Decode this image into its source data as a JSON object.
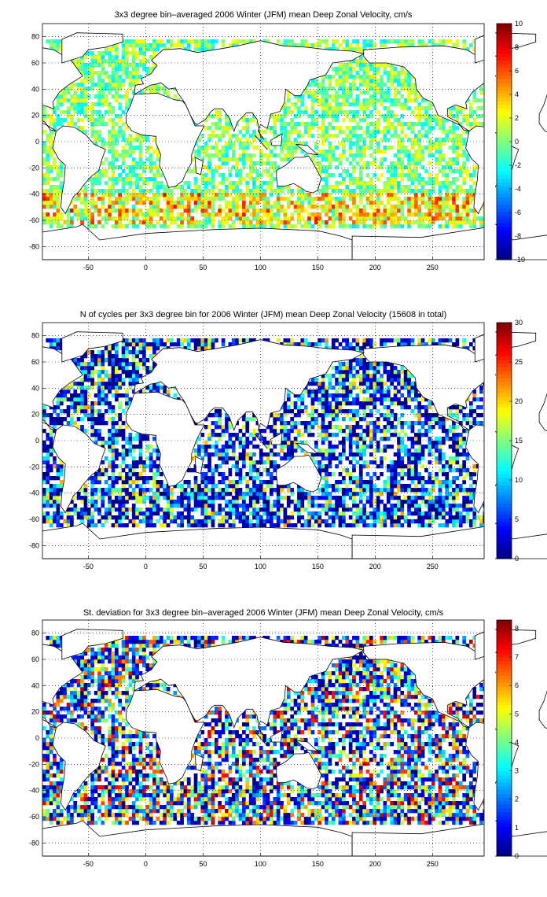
{
  "chart_data": [
    {
      "type": "heatmap",
      "title": "3x3 degree bin–averaged 2006 Winter (JFM) mean Deep Zonal Velocity, cm/s",
      "xlabel": "",
      "ylabel": "",
      "xlim": [
        -90,
        295
      ],
      "ylim": [
        -90,
        90
      ],
      "xticks": [
        -50,
        0,
        50,
        100,
        150,
        200,
        250
      ],
      "yticks": [
        -80,
        -60,
        -40,
        -20,
        0,
        20,
        40,
        60,
        80
      ],
      "grid": true,
      "colorbar": {
        "min": -10,
        "max": 10,
        "ticks": [
          -10,
          -8,
          -6,
          -4,
          -2,
          0,
          2,
          4,
          6,
          8,
          10
        ],
        "colormap": "jet"
      },
      "cell_size_deg": 3,
      "mode": "signed"
    },
    {
      "type": "heatmap",
      "title": "N of cycles per 3x3 degree bin for 2006 Winter (JFM) mean Deep Zonal Velocity (15608 in total)",
      "xlabel": "",
      "ylabel": "",
      "xlim": [
        -90,
        295
      ],
      "ylim": [
        -90,
        90
      ],
      "xticks": [
        -50,
        0,
        50,
        100,
        150,
        200,
        250
      ],
      "yticks": [
        -80,
        -60,
        -40,
        -20,
        0,
        20,
        40,
        60,
        80
      ],
      "grid": true,
      "colorbar": {
        "min": 0,
        "max": 30,
        "ticks": [
          0,
          5,
          10,
          15,
          20,
          25,
          30
        ],
        "colormap": "jet"
      },
      "cell_size_deg": 3,
      "mode": "count"
    },
    {
      "type": "heatmap",
      "title": "St. deviation for 3x3 degree bin–averaged 2006 Winter (JFM) mean Deep Zonal Velocity, cm/s",
      "xlabel": "",
      "ylabel": "",
      "xlim": [
        -90,
        295
      ],
      "ylim": [
        -90,
        90
      ],
      "xticks": [
        -50,
        0,
        50,
        100,
        150,
        200,
        250
      ],
      "yticks": [
        -80,
        -60,
        -40,
        -20,
        0,
        20,
        40,
        60,
        80
      ],
      "grid": true,
      "colorbar": {
        "min": 0,
        "max": 8.3,
        "ticks": [
          0,
          1,
          2,
          3,
          4,
          5,
          6,
          7,
          8
        ],
        "colormap": "jet"
      },
      "cell_size_deg": 3,
      "mode": "std"
    }
  ],
  "colors": {
    "land_outline": "#000000",
    "grid": "#000000",
    "background": "#ffffff"
  }
}
